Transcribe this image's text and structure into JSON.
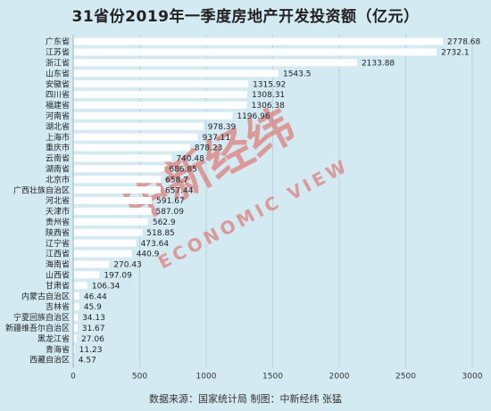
{
  "chart_data": {
    "type": "bar",
    "orientation": "horizontal",
    "title": "31省份2019年一季度房地产开发投资额（亿元）",
    "categories": [
      "广东省",
      "江苏省",
      "浙江省",
      "山东省",
      "安徽省",
      "四川省",
      "福建省",
      "河南省",
      "湖北省",
      "上海市",
      "重庆市",
      "云南省",
      "湖南省",
      "北京市",
      "广西壮族自治区",
      "河北省",
      "天津市",
      "贵州省",
      "陕西省",
      "辽宁省",
      "江西省",
      "海南省",
      "山西省",
      "甘肃省",
      "内蒙古自治区",
      "吉林省",
      "宁夏回族自治区",
      "新疆维吾尔自治区",
      "黑龙江省",
      "青海省",
      "西藏自治区"
    ],
    "values": [
      2778.68,
      2732.1,
      2133.88,
      1543.5,
      1315.92,
      1308.31,
      1306.38,
      1196.96,
      978.39,
      937.11,
      878.23,
      740.48,
      686.85,
      658.7,
      657.44,
      591.67,
      587.09,
      562.9,
      518.85,
      473.64,
      440.9,
      270.43,
      197.09,
      106.34,
      46.44,
      45.9,
      34.13,
      31.67,
      27.06,
      11.23,
      4.57
    ],
    "value_labels": [
      "2778.68",
      "2732.1",
      "2133.88",
      "1543.5",
      "1315.92",
      "1308.31",
      "1306.38",
      "1196.96",
      "978.39",
      "937.11",
      "878.23",
      "740.48",
      "686.85",
      "658.7",
      "657.44",
      "591.67",
      "587.09",
      "562.9",
      "518.85",
      "473.64",
      "440.9",
      "270.43",
      "197.09",
      "106.34",
      "46.44",
      "45.9",
      "34.13",
      "31.67",
      "27.06",
      "11.23",
      "4.57"
    ],
    "xlim": [
      0,
      3000
    ],
    "xticks": [
      "0",
      "500",
      "1000",
      "1500",
      "2000",
      "2500",
      "3000"
    ],
    "bar_color": "#ffffff",
    "watermark_color": "#e05a52"
  },
  "watermark": {
    "cn": "中新经纬",
    "en": "ECONOMIC VIEW"
  },
  "footer": {
    "source": "数据来源：国家统计局  制图：中新经纬 张猛"
  }
}
